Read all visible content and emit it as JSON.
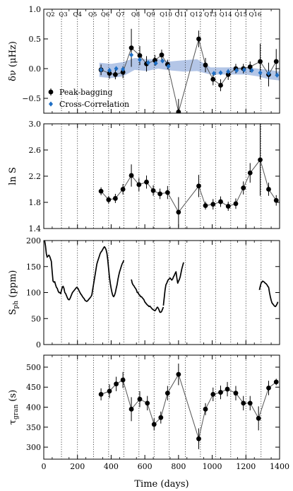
{
  "figure": {
    "xlabel": "Time (days)",
    "xlim": [
      0,
      1400
    ],
    "xticks": [
      0,
      200,
      400,
      600,
      800,
      1000,
      1200,
      1400
    ],
    "quarters": {
      "labels": [
        "Q2",
        "Q3",
        "Q4",
        "Q5",
        "Q6",
        "Q7",
        "Q8",
        "Q9",
        "Q10",
        "Q11",
        "Q12",
        "Q13",
        "Q14",
        "Q15",
        "Q16"
      ],
      "label_x": [
        40,
        115,
        200,
        290,
        365,
        455,
        545,
        635,
        725,
        815,
        905,
        990,
        1080,
        1170,
        1255
      ],
      "boundaries": [
        105,
        200,
        295,
        385,
        475,
        565,
        655,
        745,
        840,
        930,
        1020,
        1110,
        1200,
        1290
      ]
    }
  },
  "chart_data": [
    {
      "id": "dnu",
      "type": "scatter",
      "ylabel": "δν (μHz)",
      "ylim": [
        -0.75,
        1.0
      ],
      "yticks": [
        -0.5,
        0.0,
        0.5,
        1.0
      ],
      "ytick_labels": [
        "−0.5",
        "0.0",
        "0.5",
        "1.0"
      ],
      "legend": {
        "placement": "lower-left",
        "entries": [
          "Peak-bagging",
          "Cross-Correlation"
        ]
      },
      "series": [
        {
          "name": "Peak-bagging",
          "marker": "circle",
          "connected": true,
          "x": [
            340,
            390,
            425,
            470,
            520,
            570,
            610,
            660,
            700,
            735,
            800,
            920,
            960,
            1005,
            1050,
            1095,
            1140,
            1185,
            1225,
            1285,
            1335,
            1380
          ],
          "y": [
            -0.02,
            -0.08,
            -0.1,
            -0.06,
            0.35,
            0.22,
            0.08,
            0.14,
            0.23,
            0.07,
            -0.73,
            0.5,
            0.06,
            -0.18,
            -0.28,
            -0.1,
            0.0,
            0.0,
            0.03,
            0.12,
            -0.1,
            0.12
          ],
          "err": [
            0.09,
            0.09,
            0.08,
            0.1,
            0.32,
            0.16,
            0.13,
            0.09,
            0.09,
            0.08,
            0.22,
            0.14,
            0.12,
            0.1,
            0.1,
            0.09,
            0.08,
            0.08,
            0.09,
            0.3,
            0.2,
            0.21
          ]
        },
        {
          "name": "Cross-Correlation",
          "marker": "diamond",
          "x": [
            340,
            390,
            430,
            470,
            520,
            570,
            620,
            665,
            705,
            740,
            1010,
            1050,
            1095,
            1145,
            1190,
            1235,
            1285,
            1335,
            1385
          ],
          "y": [
            -0.02,
            -0.03,
            0.0,
            -0.01,
            0.23,
            0.15,
            0.1,
            0.09,
            0.13,
            0.04,
            -0.08,
            -0.07,
            -0.05,
            -0.03,
            -0.02,
            -0.03,
            -0.07,
            -0.08,
            -0.11
          ]
        }
      ],
      "band": {
        "x": [
          330,
          400,
          470,
          540,
          610,
          680,
          750,
          830,
          910,
          990,
          1060,
          1130,
          1200,
          1270,
          1340,
          1400
        ],
        "lower": [
          -0.14,
          -0.16,
          -0.13,
          -0.02,
          -0.04,
          0.0,
          -0.03,
          -0.05,
          -0.04,
          -0.1,
          -0.1,
          -0.1,
          -0.1,
          -0.13,
          -0.18,
          -0.2
        ],
        "upper": [
          0.1,
          0.08,
          0.11,
          0.18,
          0.16,
          0.16,
          0.12,
          0.14,
          0.16,
          0.02,
          0.02,
          0.02,
          0.02,
          0.0,
          -0.02,
          -0.05
        ],
        "color": "#b4c6e7"
      }
    },
    {
      "id": "lnS",
      "type": "scatter",
      "ylabel": "ln S",
      "ylim": [
        1.4,
        3.0
      ],
      "yticks": [
        1.4,
        1.8,
        2.2,
        2.6,
        3.0
      ],
      "ytick_labels": [
        "1.4",
        "1.8",
        "2.2",
        "2.6",
        "3.0"
      ],
      "series": [
        {
          "name": "",
          "marker": "circle",
          "connected": true,
          "x": [
            340,
            385,
            425,
            470,
            520,
            565,
            610,
            650,
            690,
            735,
            800,
            920,
            960,
            1005,
            1050,
            1095,
            1140,
            1185,
            1225,
            1285,
            1335,
            1380
          ],
          "y": [
            1.97,
            1.84,
            1.86,
            2.0,
            2.21,
            2.07,
            2.11,
            1.98,
            1.93,
            1.95,
            1.65,
            2.05,
            1.75,
            1.77,
            1.81,
            1.74,
            1.78,
            2.02,
            2.25,
            2.45,
            2.0,
            1.83
          ]
        }
      ],
      "err": [
        0.06,
        0.06,
        0.07,
        0.08,
        0.17,
        0.1,
        0.1,
        0.08,
        0.08,
        0.1,
        0.23,
        0.17,
        0.06,
        0.08,
        0.08,
        0.07,
        0.08,
        0.1,
        0.15,
        0.55,
        0.1,
        0.08
      ]
    },
    {
      "id": "sph",
      "type": "line",
      "ylabel": "S_ph (ppm)",
      "ylim": [
        0,
        200
      ],
      "yticks": [
        0,
        50,
        100,
        150,
        200
      ],
      "ytick_labels": [
        "0",
        "50",
        "100",
        "150",
        "200"
      ],
      "series": [
        {
          "name": "",
          "x": [
            5,
            10,
            15,
            20,
            25,
            30,
            35,
            40,
            45,
            50,
            55,
            60,
            65,
            70,
            75,
            80,
            85,
            90,
            95,
            100,
            105,
            110,
            115,
            120,
            125,
            130,
            135,
            140,
            145,
            150,
            155,
            160,
            165,
            170,
            175,
            180,
            185,
            190,
            195,
            200,
            205,
            210,
            215,
            220,
            225,
            230,
            235,
            240,
            245,
            250,
            255,
            260,
            265,
            270,
            275,
            280
          ],
          "y": [
            200,
            190,
            175,
            168,
            170,
            172,
            170,
            165,
            160,
            140,
            122,
            120,
            121,
            115,
            110,
            108,
            103,
            100,
            100,
            98,
            104,
            110,
            112,
            108,
            100,
            98,
            94,
            90,
            87,
            86,
            88,
            92,
            96,
            100,
            102,
            104,
            106,
            108,
            110,
            109,
            107,
            103,
            100,
            97,
            95,
            92,
            90,
            88,
            85,
            84,
            83,
            84,
            86,
            88,
            90,
            92
          ]
        },
        {
          "name": "",
          "x": [
            280,
            285,
            290,
            295,
            300,
            305,
            310,
            315,
            320,
            325,
            330,
            335,
            340,
            345,
            350,
            355,
            360,
            365,
            370,
            375,
            380,
            385,
            390,
            395,
            400,
            405,
            410,
            415,
            420,
            425,
            430,
            435,
            440,
            445,
            450,
            455,
            460,
            465,
            470,
            475
          ],
          "y": [
            92,
            95,
            105,
            115,
            125,
            135,
            145,
            155,
            160,
            165,
            170,
            175,
            178,
            180,
            183,
            186,
            188,
            186,
            182,
            175,
            162,
            145,
            130,
            118,
            108,
            100,
            94,
            92,
            95,
            100,
            108,
            115,
            125,
            133,
            140,
            145,
            150,
            155,
            158,
            162
          ]
        },
        {
          "name": "",
          "x": [
            520,
            525,
            530,
            535,
            540,
            545,
            550,
            555,
            560,
            565,
            570,
            575,
            580,
            585,
            590,
            595,
            600,
            605,
            610,
            615,
            620,
            625,
            630,
            635,
            640,
            645,
            650,
            655,
            660,
            665,
            670,
            675,
            680,
            685,
            690,
            695,
            700,
            705,
            710
          ],
          "y": [
            125,
            118,
            115,
            113,
            110,
            108,
            105,
            100,
            100,
            96,
            95,
            92,
            92,
            90,
            88,
            86,
            82,
            80,
            78,
            76,
            75,
            73,
            74,
            72,
            70,
            68,
            67,
            66,
            65,
            67,
            70,
            72,
            70,
            66,
            62,
            62,
            64,
            68,
            72
          ]
        },
        {
          "name": "",
          "x": [
            710,
            715,
            720,
            725,
            730,
            735,
            740,
            745,
            750,
            755,
            760,
            765,
            770,
            775,
            780,
            785,
            790,
            795,
            800,
            805,
            810,
            815,
            820,
            825,
            830
          ],
          "y": [
            75,
            90,
            105,
            115,
            118,
            122,
            125,
            126,
            128,
            126,
            124,
            126,
            130,
            133,
            137,
            140,
            128,
            118,
            122,
            125,
            130,
            138,
            146,
            152,
            158
          ]
        },
        {
          "name": "",
          "x": [
            1280,
            1285,
            1290,
            1295,
            1300,
            1305,
            1310,
            1315,
            1320,
            1325,
            1330,
            1335,
            1340,
            1345,
            1350,
            1355,
            1360,
            1365,
            1370,
            1375,
            1380,
            1385,
            1390
          ],
          "y": [
            105,
            112,
            118,
            120,
            122,
            121,
            120,
            118,
            117,
            115,
            112,
            110,
            100,
            92,
            85,
            80,
            78,
            76,
            74,
            73,
            75,
            78,
            82
          ]
        }
      ]
    },
    {
      "id": "tau",
      "type": "scatter",
      "ylabel": "τ_gran (s)",
      "ylim": [
        270,
        530
      ],
      "yticks": [
        300,
        350,
        400,
        450,
        500
      ],
      "ytick_labels": [
        "300",
        "350",
        "400",
        "450",
        "500"
      ],
      "series": [
        {
          "name": "",
          "marker": "circle",
          "connected": true,
          "x": [
            340,
            390,
            430,
            470,
            520,
            570,
            615,
            655,
            695,
            735,
            800,
            920,
            960,
            1005,
            1050,
            1090,
            1140,
            1185,
            1225,
            1275,
            1335,
            1380
          ],
          "y": [
            432,
            440,
            458,
            468,
            395,
            420,
            410,
            357,
            374,
            435,
            482,
            321,
            395,
            432,
            437,
            445,
            435,
            410,
            410,
            372,
            448,
            463
          ],
          "err": [
            15,
            17,
            18,
            20,
            30,
            20,
            18,
            15,
            15,
            18,
            27,
            26,
            15,
            17,
            17,
            18,
            18,
            18,
            18,
            30,
            18,
            8
          ]
        }
      ]
    }
  ]
}
